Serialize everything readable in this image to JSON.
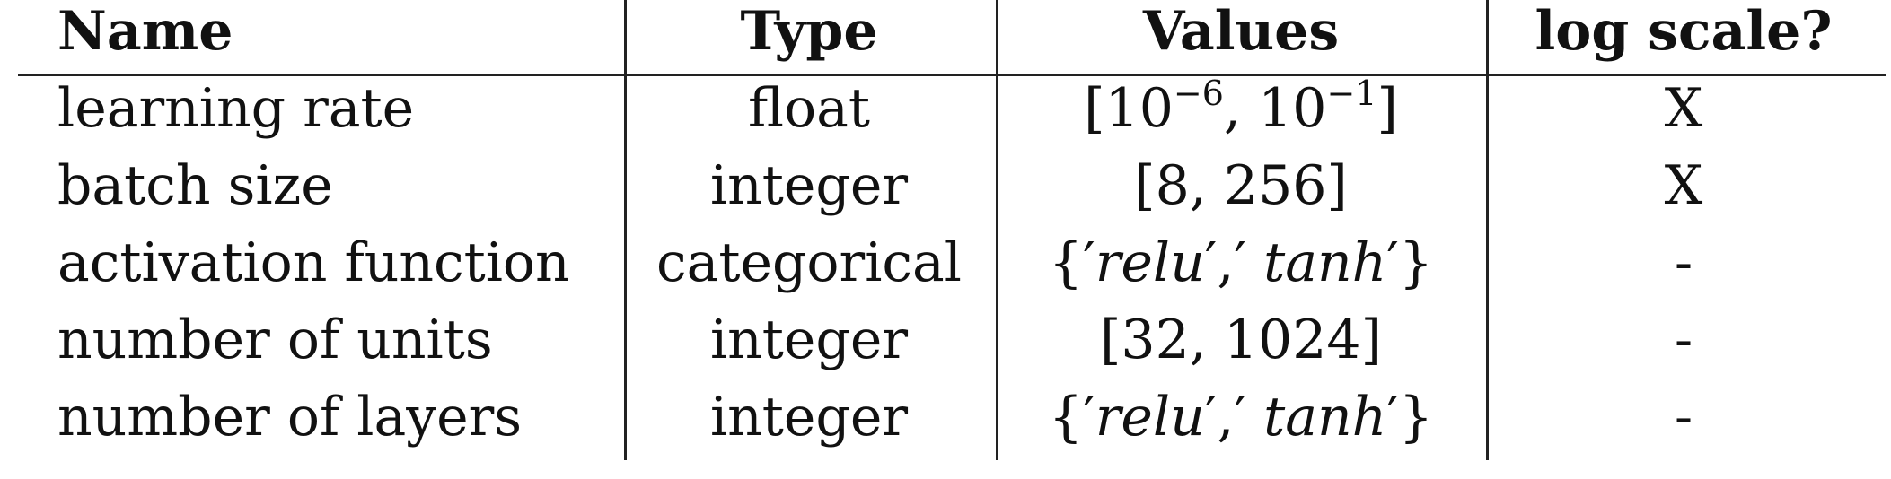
{
  "headers": [
    "Name",
    "Type",
    "Values",
    "log scale?"
  ],
  "rows": [
    {
      "name": "learning rate",
      "type": "float",
      "values": {
        "base1": "10",
        "exp1": "−6",
        "base2": "10",
        "exp2": "−1"
      },
      "log": "X"
    },
    {
      "name": "batch size",
      "type": "integer",
      "values": "[8, 256]",
      "log": "X"
    },
    {
      "name": "activation function",
      "type": "categorical",
      "values": {
        "open": "{′",
        "a": "relu",
        "mid": "′,′ ",
        "b": "tanh",
        "close": "′}"
      },
      "log": "-"
    },
    {
      "name": "number of units",
      "type": "integer",
      "values": "[32, 1024]",
      "log": "-"
    },
    {
      "name": "number of layers",
      "type": "integer",
      "values": {
        "open": "{′",
        "a": "relu",
        "mid": "′,′ ",
        "b": "tanh",
        "close": "′}"
      },
      "log": "-"
    }
  ]
}
